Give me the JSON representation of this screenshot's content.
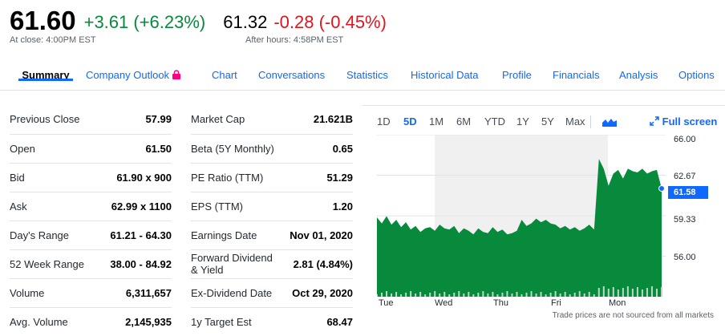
{
  "quote": {
    "price": "61.60",
    "change": "+3.61 (+6.23%)",
    "close_label": "At close: 4:00PM EST",
    "after_price": "61.32",
    "after_change": "-0.28 (-0.45%)",
    "after_label": "After hours: 4:58PM EST"
  },
  "tabs": [
    "Summary",
    "Company Outlook",
    "Chart",
    "Conversations",
    "Statistics",
    "Historical Data",
    "Profile",
    "Financials",
    "Analysis",
    "Options"
  ],
  "left_table": [
    {
      "label": "Previous Close",
      "value": "57.99"
    },
    {
      "label": "Open",
      "value": "61.50"
    },
    {
      "label": "Bid",
      "value": "61.90 x 900"
    },
    {
      "label": "Ask",
      "value": "62.99 x 1100"
    },
    {
      "label": "Day's Range",
      "value": "61.21 - 64.30"
    },
    {
      "label": "52 Week Range",
      "value": "38.00 - 84.92"
    },
    {
      "label": "Volume",
      "value": "6,311,657"
    },
    {
      "label": "Avg. Volume",
      "value": "2,145,935"
    }
  ],
  "right_table": [
    {
      "label": "Market Cap",
      "value": "21.621B"
    },
    {
      "label": "Beta (5Y Monthly)",
      "value": "0.65"
    },
    {
      "label": "PE Ratio (TTM)",
      "value": "51.29"
    },
    {
      "label": "EPS (TTM)",
      "value": "1.20"
    },
    {
      "label": "Earnings Date",
      "value": "Nov 01, 2020"
    },
    {
      "label": "Forward Dividend & Yield",
      "value": "2.81 (4.84%)"
    },
    {
      "label": "Ex-Dividend Date",
      "value": "Oct 29, 2020"
    },
    {
      "label": "1y Target Est",
      "value": "68.47"
    }
  ],
  "chart": {
    "ranges": [
      "1D",
      "5D",
      "1M",
      "6M",
      "YTD",
      "1Y",
      "5Y",
      "Max"
    ],
    "selected_range": "5D",
    "fullscreen_label": "Full screen",
    "current_price_label": "61.58",
    "note": "Trade prices are not sourced from all markets",
    "accent_color": "#0f69ff",
    "area_color": "#078a3c"
  },
  "chart_data": {
    "type": "area",
    "x_labels": [
      "Tue",
      "Wed",
      "Thu",
      "Fri",
      "Mon"
    ],
    "y_ticks": [
      "66.00",
      "62.67",
      "59.33",
      "56.00"
    ],
    "ylim": [
      52.67,
      66.0
    ],
    "series": [
      {
        "values": [
          59.2,
          58.7,
          59.3,
          58.6,
          59.0,
          58.4,
          58.8,
          58.2,
          58.5,
          58.0,
          58.3,
          58.4,
          58.1,
          58.6,
          58.3,
          58.2,
          58.5,
          57.9,
          58.3,
          58.1,
          57.8,
          58.3,
          58.0,
          57.9,
          58.4,
          58.0,
          58.2,
          57.8,
          57.9,
          58.1,
          59.0,
          58.5,
          58.7,
          59.1,
          58.8,
          59.0,
          58.7,
          58.6,
          58.3,
          58.5,
          58.2,
          58.4,
          58.1,
          58.3,
          58.6,
          58.2,
          64.0,
          63.2,
          61.8,
          62.8,
          63.1,
          62.4,
          63.2,
          63.0,
          62.9,
          63.2,
          62.8,
          63.0,
          63.1,
          61.58
        ]
      }
    ],
    "grid": true
  }
}
